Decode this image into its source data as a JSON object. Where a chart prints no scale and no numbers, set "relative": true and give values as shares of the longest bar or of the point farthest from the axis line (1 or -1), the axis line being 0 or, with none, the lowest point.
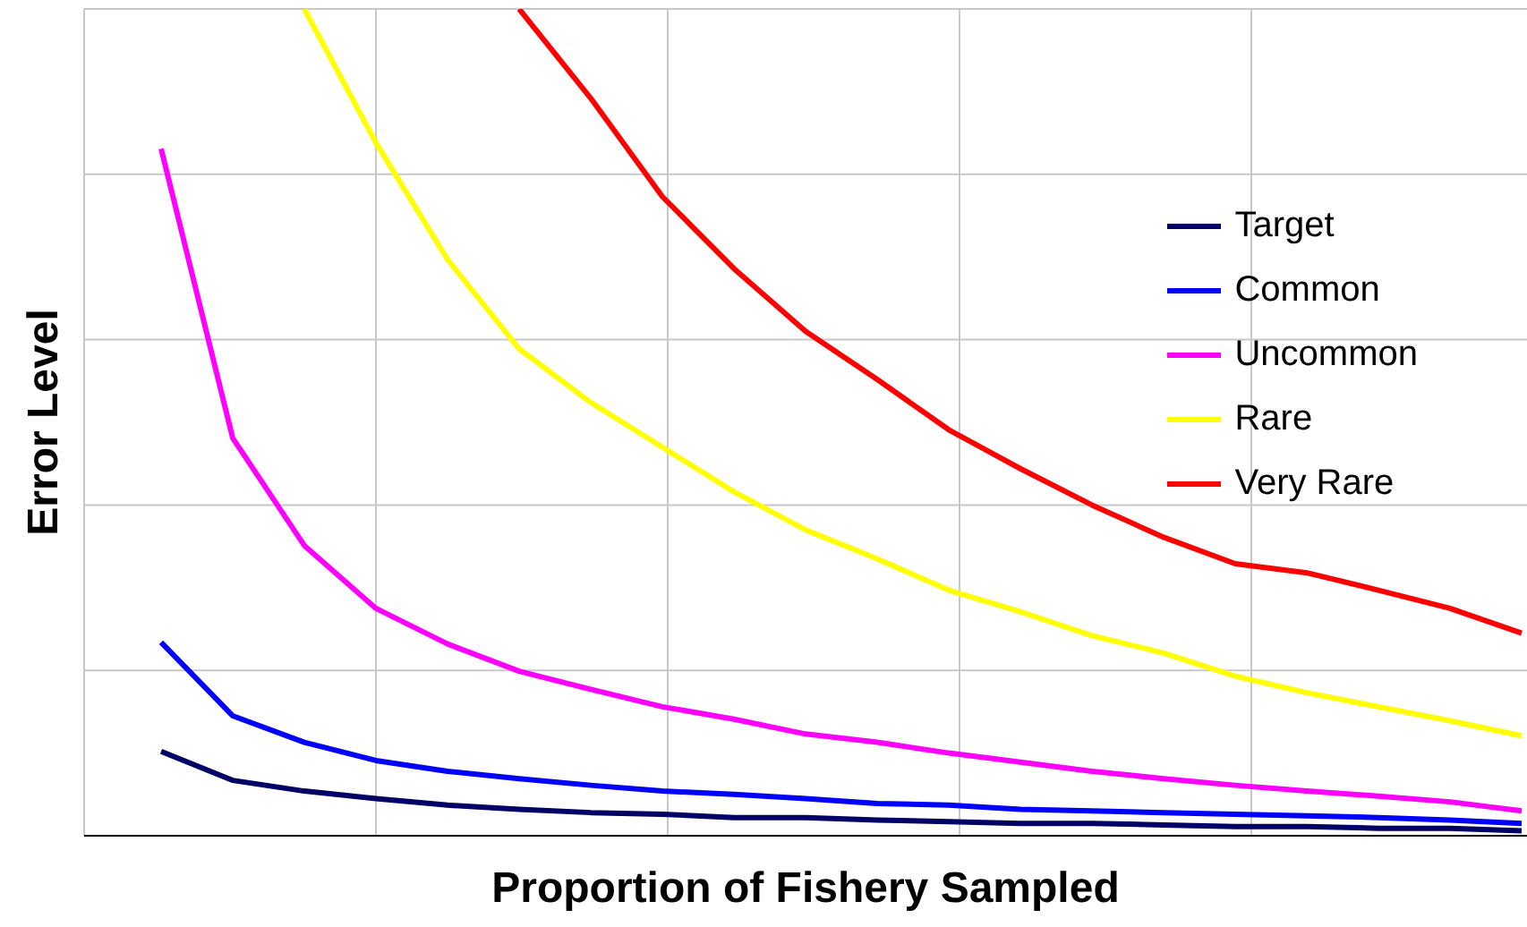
{
  "chart_data": {
    "type": "line",
    "relative": true,
    "xlabel": "Proportion of Fishery Sampled",
    "ylabel": "Error Level",
    "categories": [
      null,
      null,
      null,
      null,
      null,
      null,
      null,
      null,
      null,
      null,
      null,
      null,
      null,
      null,
      null,
      null,
      null,
      null,
      null,
      null
    ],
    "series": [
      {
        "name": "Target",
        "color": "#000066",
        "values": [
          0.102,
          0.067,
          0.054,
          0.045,
          0.037,
          0.032,
          0.028,
          0.026,
          0.022,
          0.022,
          0.019,
          0.017,
          0.015,
          0.015,
          0.013,
          0.011,
          0.011,
          0.009,
          0.009,
          0.006
        ]
      },
      {
        "name": "Common",
        "color": "#0000ff",
        "values": [
          0.234,
          0.145,
          0.113,
          0.091,
          0.078,
          0.069,
          0.061,
          0.054,
          0.05,
          0.045,
          0.039,
          0.037,
          0.032,
          0.03,
          0.028,
          0.026,
          0.024,
          0.022,
          0.019,
          0.015
        ]
      },
      {
        "name": "Uncommon",
        "color": "#ff00ff",
        "values": [
          0.831,
          0.481,
          0.351,
          0.275,
          0.232,
          0.199,
          0.177,
          0.156,
          0.141,
          0.123,
          0.113,
          0.1,
          0.089,
          0.078,
          0.069,
          0.061,
          0.054,
          0.048,
          0.041,
          0.03
        ]
      },
      {
        "name": "Rare",
        "color": "#ffff00",
        "values": [
          null,
          null,
          1.0,
          0.838,
          0.697,
          0.589,
          0.524,
          0.47,
          0.416,
          0.37,
          0.335,
          0.297,
          0.271,
          0.242,
          0.221,
          0.193,
          0.173,
          0.156,
          0.139,
          0.121
        ]
      },
      {
        "name": "Very Rare",
        "color": "#ff0000",
        "values": [
          null,
          null,
          null,
          null,
          null,
          1.0,
          0.892,
          0.773,
          0.686,
          0.61,
          0.552,
          0.491,
          0.444,
          0.4,
          0.361,
          0.329,
          0.318,
          0.297,
          0.275,
          0.245
        ]
      }
    ],
    "grid": true,
    "legend": "top right",
    "marker": "none",
    "line_style": "solid"
  }
}
